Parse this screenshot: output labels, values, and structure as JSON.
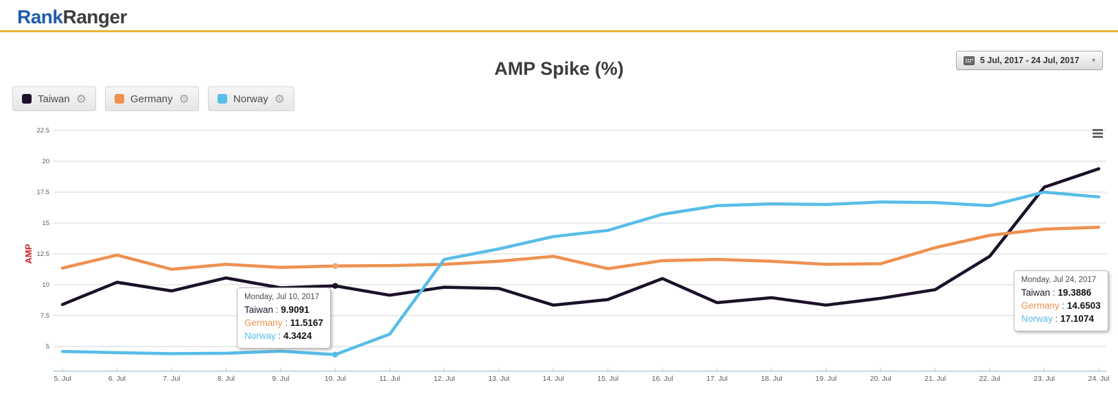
{
  "header": {
    "logo_rank": "Rank",
    "logo_ranger": "Ranger"
  },
  "toolbar": {
    "date_range": "5 Jul, 2017 - 24 Jul, 2017",
    "dropdown_arrow": "▾"
  },
  "title": "AMP Spike (%)",
  "legend": {
    "items": [
      {
        "label": "Taiwan",
        "color": "#1b1128",
        "gear_icon": "⚙"
      },
      {
        "label": "Germany",
        "color": "#ee9150",
        "gear_icon": "⚙"
      },
      {
        "label": "Norway",
        "color": "#58bde8",
        "gear_icon": "⚙"
      }
    ]
  },
  "colors": {
    "grid": "#d6d6d6",
    "axis_line": "#b3cbdc",
    "tick_label": "#5a5a5a",
    "ylabel": "#cc2127",
    "accent_gold": "#e9b438",
    "logo_blue": "#1f5ca9",
    "logo_dark": "#3d3d3d"
  },
  "chart_data": {
    "type": "line",
    "title": "AMP Spike (%)",
    "xlabel": "",
    "ylabel": "AMP",
    "ylim": [
      5,
      22.5
    ],
    "yticks": [
      22.5,
      20,
      17.5,
      15,
      12.5,
      10,
      7.5,
      5
    ],
    "grid": true,
    "legend_position": "top-left",
    "categories": [
      "5. Jul",
      "6. Jul",
      "7. Jul",
      "8. Jul",
      "9. Jul",
      "10. Jul",
      "11. Jul",
      "12. Jul",
      "13. Jul",
      "14. Jul",
      "15. Jul",
      "16. Jul",
      "17. Jul",
      "18. Jul",
      "19. Jul",
      "20. Jul",
      "21. Jul",
      "22. Jul",
      "23. Jul",
      "24. Jul"
    ],
    "highlight_indexes": [
      5
    ],
    "series": [
      {
        "name": "Taiwan",
        "color": "#1b1128",
        "values": [
          8.4,
          10.2,
          9.5,
          10.55,
          9.75,
          9.9091,
          9.15,
          9.8,
          9.7,
          8.35,
          8.8,
          10.5,
          8.55,
          8.95,
          8.35,
          8.9,
          9.6,
          12.3,
          17.9,
          19.3886
        ]
      },
      {
        "name": "Germany",
        "color": "#ee9150",
        "marker_color": "#f2a96e",
        "values": [
          11.35,
          12.4,
          11.25,
          11.65,
          11.4,
          11.5167,
          11.55,
          11.65,
          11.9,
          12.3,
          11.3,
          11.95,
          12.05,
          11.9,
          11.65,
          11.7,
          13.0,
          14.0,
          14.5,
          14.6503
        ]
      },
      {
        "name": "Norway",
        "color": "#58bde8",
        "values": [
          4.6,
          4.5,
          4.42,
          4.45,
          4.62,
          4.3424,
          6.0,
          12.05,
          12.9,
          13.9,
          14.4,
          15.7,
          16.4,
          16.55,
          16.5,
          16.7,
          16.65,
          16.4,
          17.5,
          17.1074
        ]
      }
    ]
  },
  "tooltips": {
    "separator": " : ",
    "jul10": {
      "date": "Monday, Jul 10, 2017",
      "rows": [
        {
          "label": "Taiwan",
          "value": "9.9091"
        },
        {
          "label": "Germany",
          "value": "11.5167"
        },
        {
          "label": "Norway",
          "value": "4.3424"
        }
      ]
    },
    "jul24": {
      "date": "Monday, Jul 24, 2017",
      "rows": [
        {
          "label": "Taiwan",
          "value": "19.3886"
        },
        {
          "label": "Germany",
          "value": "14.6503"
        },
        {
          "label": "Norway",
          "value": "17.1074"
        }
      ]
    }
  }
}
